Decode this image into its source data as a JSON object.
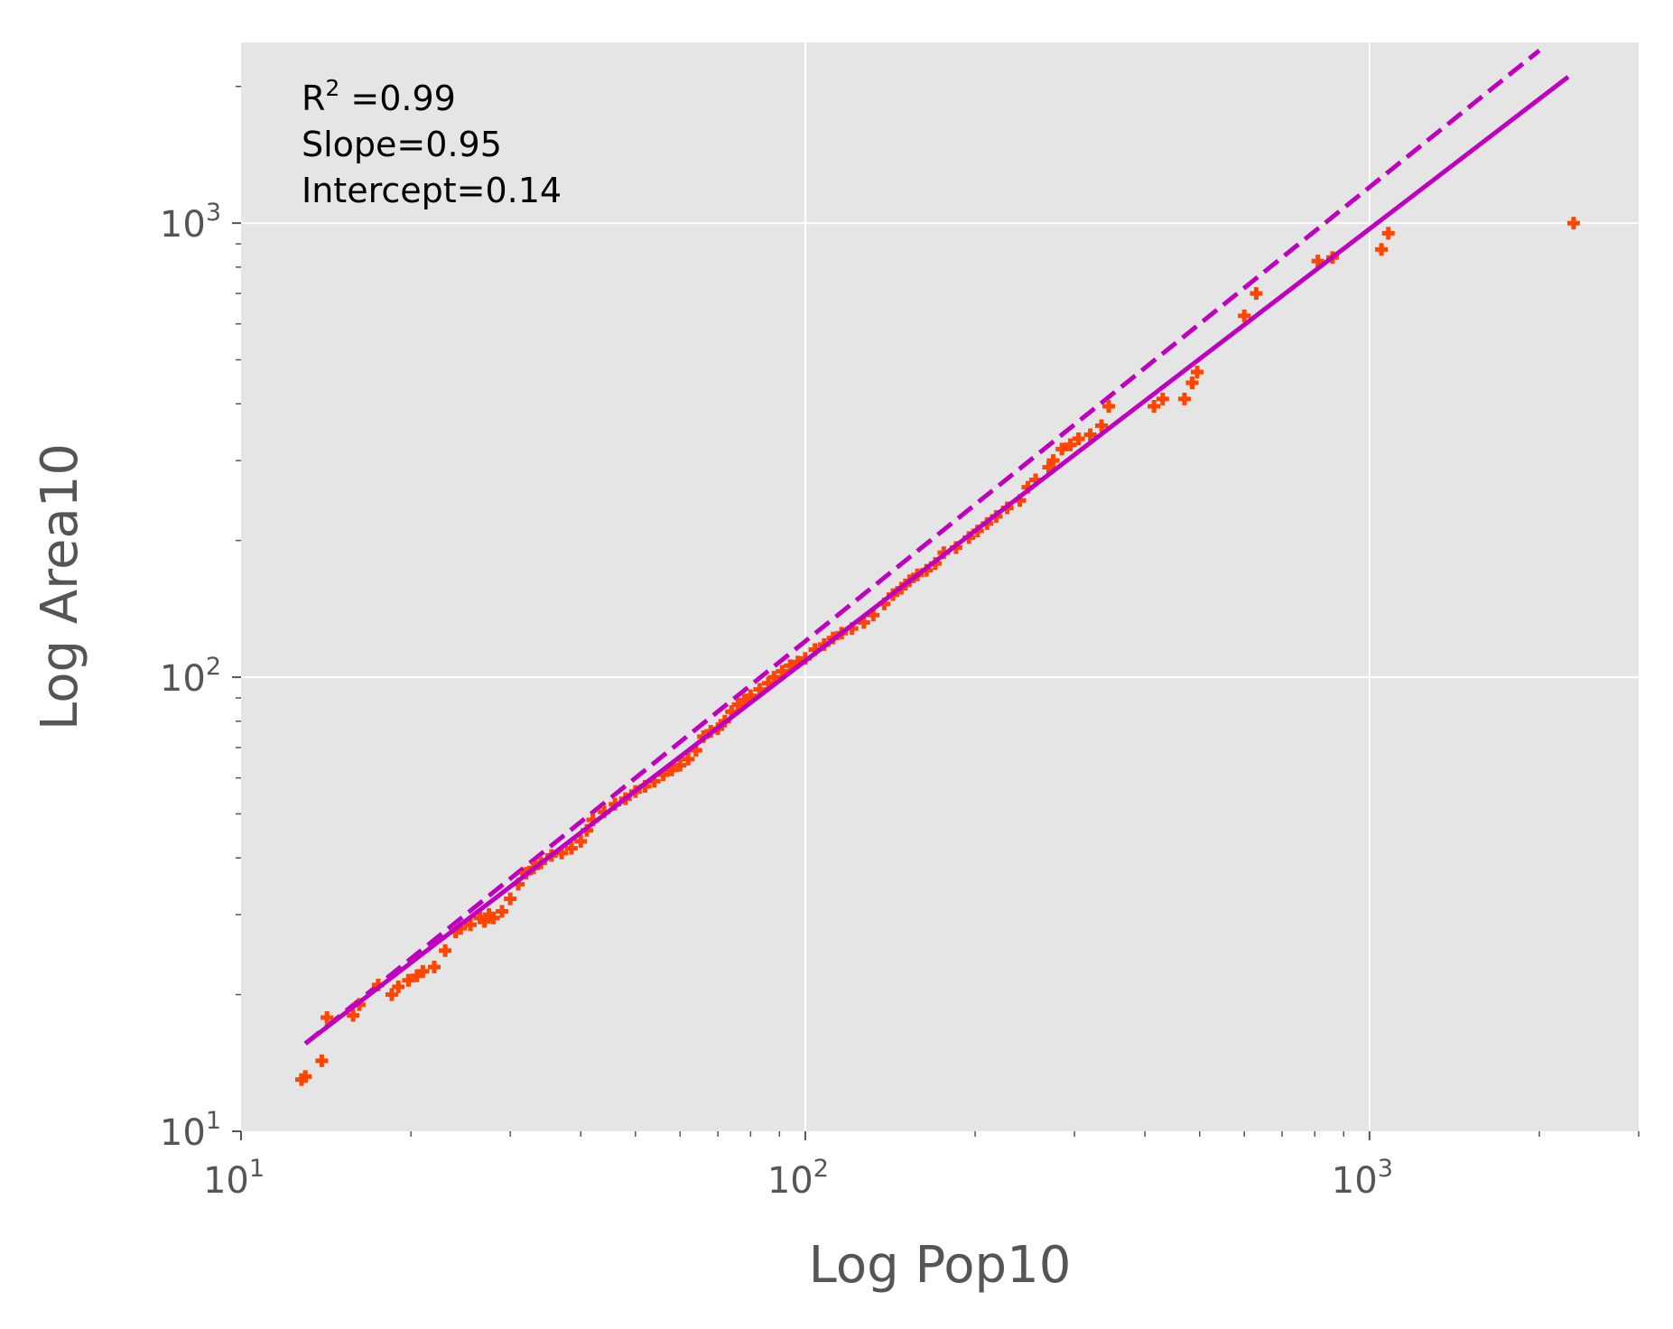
{
  "chart_data": {
    "type": "scatter",
    "title": "",
    "xlabel": "Log Pop10",
    "ylabel": "Log Area10",
    "xscale": "log",
    "yscale": "log",
    "xlim": [
      10,
      3000
    ],
    "ylim": [
      10,
      2500
    ],
    "x_ticks": [
      {
        "base": "10",
        "exp": "1",
        "value": 10
      },
      {
        "base": "10",
        "exp": "2",
        "value": 100
      },
      {
        "base": "10",
        "exp": "3",
        "value": 1000
      }
    ],
    "y_ticks": [
      {
        "base": "10",
        "exp": "1",
        "value": 10
      },
      {
        "base": "10",
        "exp": "2",
        "value": 100
      },
      {
        "base": "10",
        "exp": "3",
        "value": 1000
      }
    ],
    "grid": true,
    "background": "#e5e5e5",
    "annotation": {
      "r2_prefix": "R",
      "r2_sup": "2",
      "r2_suffix": " =0.99",
      "slope": "Slope=0.95",
      "intercept": "Intercept=0.14"
    },
    "fit_line": {
      "style": "solid",
      "color": "#bf00bf",
      "x": [
        13,
        2250
      ],
      "y": [
        15.6,
        2100
      ]
    },
    "reference_line": {
      "style": "dashed",
      "color": "#bf00bf",
      "x": [
        13,
        2000
      ],
      "y": [
        15.6,
        2400
      ]
    },
    "points_color": "#ff4500",
    "points": [
      [
        12.8,
        13
      ],
      [
        13.0,
        13.2
      ],
      [
        13.9,
        14.3
      ],
      [
        14.2,
        17.8
      ],
      [
        15.8,
        18.0
      ],
      [
        16.2,
        19.0
      ],
      [
        17.5,
        21.0
      ],
      [
        18.5,
        20.0
      ],
      [
        19.0,
        20.8
      ],
      [
        19.8,
        21.5
      ],
      [
        20.5,
        22.0
      ],
      [
        21.0,
        22.5
      ],
      [
        22.0,
        23.0
      ],
      [
        23.0,
        25.0
      ],
      [
        24.0,
        27.5
      ],
      [
        24.5,
        28.0
      ],
      [
        25.5,
        28.5
      ],
      [
        26.5,
        29.5
      ],
      [
        27.0,
        29.0
      ],
      [
        27.5,
        30.0
      ],
      [
        28.0,
        29.5
      ],
      [
        29.0,
        30.5
      ],
      [
        30.0,
        32.5
      ],
      [
        31.0,
        35.0
      ],
      [
        32.0,
        37.0
      ],
      [
        33.0,
        38.0
      ],
      [
        34.0,
        39.0
      ],
      [
        35.5,
        40.5
      ],
      [
        37.0,
        41.0
      ],
      [
        38.5,
        42.0
      ],
      [
        40.0,
        43.5
      ],
      [
        41.0,
        46.0
      ],
      [
        42.0,
        48.5
      ],
      [
        44.0,
        50.5
      ],
      [
        46.0,
        52.5
      ],
      [
        48.0,
        54.0
      ],
      [
        50.0,
        56.0
      ],
      [
        52.0,
        57.5
      ],
      [
        54.0,
        59.0
      ],
      [
        56.0,
        61.0
      ],
      [
        58.0,
        62.5
      ],
      [
        60.0,
        64.0
      ],
      [
        62.0,
        66.0
      ],
      [
        64.0,
        69.0
      ],
      [
        66.0,
        74.0
      ],
      [
        68.0,
        76.0
      ],
      [
        70.0,
        77.0
      ],
      [
        72.0,
        80.0
      ],
      [
        74.0,
        84.0
      ],
      [
        76.0,
        87.0
      ],
      [
        78.0,
        89.0
      ],
      [
        80.0,
        91.0
      ],
      [
        83.0,
        94.0
      ],
      [
        86.0,
        97.0
      ],
      [
        88.0,
        100.0
      ],
      [
        91.0,
        103.0
      ],
      [
        94.0,
        106.0
      ],
      [
        97.0,
        108.0
      ],
      [
        100.0,
        110.0
      ],
      [
        104.0,
        115.0
      ],
      [
        108.0,
        118.0
      ],
      [
        112.0,
        122.0
      ],
      [
        116.0,
        125.0
      ],
      [
        121.0,
        128.0
      ],
      [
        127.0,
        132.0
      ],
      [
        132.0,
        137.0
      ],
      [
        138.0,
        145.0
      ],
      [
        143.0,
        152.0
      ],
      [
        148.0,
        157.0
      ],
      [
        153.0,
        163.0
      ],
      [
        158.0,
        168.0
      ],
      [
        164.0,
        172.0
      ],
      [
        170.0,
        178.0
      ],
      [
        176.0,
        188.0
      ],
      [
        185.0,
        193.0
      ],
      [
        195.0,
        203.0
      ],
      [
        202.0,
        210.0
      ],
      [
        210.0,
        218.0
      ],
      [
        218.0,
        226.0
      ],
      [
        228.0,
        236.0
      ],
      [
        240.0,
        245.0
      ],
      [
        248.0,
        262.0
      ],
      [
        256.0,
        272.0
      ],
      [
        270.0,
        290.0
      ],
      [
        275.0,
        300.0
      ],
      [
        285.0,
        318.0
      ],
      [
        295.0,
        325.0
      ],
      [
        305.0,
        335.0
      ],
      [
        320.0,
        342.0
      ],
      [
        335.0,
        358.0
      ],
      [
        345.0,
        395.0
      ],
      [
        415.0,
        395.0
      ],
      [
        430.0,
        410.0
      ],
      [
        470.0,
        410.0
      ],
      [
        485.0,
        445.0
      ],
      [
        495.0,
        470.0
      ],
      [
        600.0,
        625.0
      ],
      [
        630.0,
        700.0
      ],
      [
        810.0,
        825.0
      ],
      [
        860.0,
        840.0
      ],
      [
        1050.0,
        875.0
      ],
      [
        1080.0,
        950.0
      ],
      [
        2300.0,
        1000.0
      ]
    ]
  }
}
